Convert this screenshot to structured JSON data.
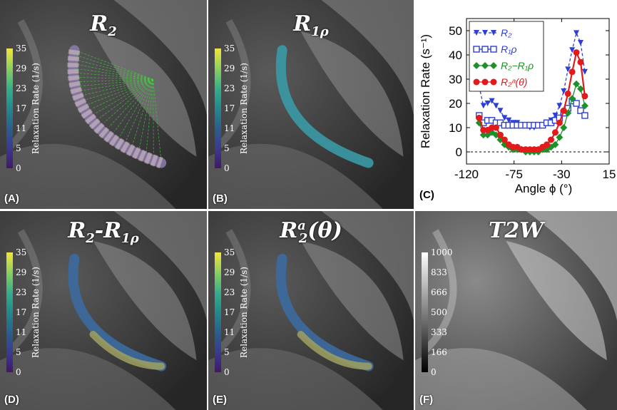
{
  "panels": [
    {
      "id": "A",
      "label": "(A)",
      "title": "R",
      "sub": "2",
      "colorbar": true,
      "overlay": "fan"
    },
    {
      "id": "B",
      "label": "(B)",
      "title": "R",
      "sub": "1ρ",
      "colorbar": true,
      "overlay": "cyan"
    },
    {
      "id": "D",
      "label": "(D)",
      "title": "R",
      "sub": "2",
      "title2": "-R",
      "sub2": "1ρ",
      "colorbar": true,
      "overlay": "mixed"
    },
    {
      "id": "E",
      "label": "(E)",
      "title": "R",
      "sub": "2",
      "sup": "a",
      "tail": "(θ)",
      "colorbar": true,
      "overlay": "mixed"
    },
    {
      "id": "F",
      "label": "(F)",
      "title": "T2W",
      "colorbar": false,
      "overlay": "none"
    }
  ],
  "colorbar_rate": {
    "title": "Relaxation Rate (1/s)",
    "ticks": [
      "35",
      "29",
      "23",
      "17",
      "11",
      "5",
      "0"
    ],
    "colors": [
      "#f2e63a",
      "#8bd15a",
      "#35b08a",
      "#23898d",
      "#2a5f8e",
      "#3a3b8e",
      "#41186a"
    ]
  },
  "colorbar_t2w": {
    "ticks": [
      "1000",
      "833",
      "666",
      "500",
      "333",
      "166",
      "0"
    ]
  },
  "chart_data": {
    "type": "line",
    "panel_label": "(C)",
    "xlabel": "Angle ϕ (°)",
    "ylabel": "Relaxation Rate (s⁻¹)",
    "xlim": [
      -120,
      15
    ],
    "ylim": [
      -5,
      55
    ],
    "xticks": [
      -120,
      -75,
      -30,
      15
    ],
    "yticks": [
      0,
      10,
      20,
      30,
      40,
      50
    ],
    "legend_position": "top-left",
    "series": [
      {
        "name": "R₂",
        "color": "#2d3fd6",
        "marker": "triangle-down",
        "dash": "4,3",
        "x": [
          -108,
          -104,
          -100,
          -96,
          -92,
          -88,
          -84,
          -80,
          -76,
          -72,
          -68,
          -64,
          -60,
          -56,
          -52,
          -48,
          -44,
          -40,
          -36,
          -32,
          -28,
          -24,
          -20,
          -16,
          -12,
          -8
        ],
        "y": [
          27,
          19,
          20,
          21,
          19,
          17,
          14,
          13,
          12,
          12,
          11,
          11,
          10,
          10,
          11,
          11,
          12,
          13,
          15,
          19,
          25,
          34,
          42,
          49,
          45,
          33
        ]
      },
      {
        "name": "R₁ρ",
        "color": "#2d3fd6",
        "marker": "square",
        "dash": "",
        "x": [
          -108,
          -104,
          -100,
          -96,
          -92,
          -88,
          -84,
          -80,
          -76,
          -72,
          -68,
          -64,
          -60,
          -56,
          -52,
          -48,
          -44,
          -40,
          -36,
          -32,
          -28,
          -24,
          -20,
          -16,
          -12,
          -8
        ],
        "y": [
          15,
          12,
          13,
          13,
          12,
          12,
          11,
          11,
          11,
          11,
          11,
          11,
          11,
          11,
          11,
          11,
          12,
          12,
          13,
          14,
          16,
          18,
          21,
          20,
          17,
          15
        ]
      },
      {
        "name": "R₂−R₁ρ",
        "color": "#1f8f2a",
        "marker": "diamond",
        "dash": "",
        "x": [
          -108,
          -104,
          -100,
          -96,
          -92,
          -88,
          -84,
          -80,
          -76,
          -72,
          -68,
          -64,
          -60,
          -56,
          -52,
          -48,
          -44,
          -40,
          -36,
          -32,
          -28,
          -24,
          -20,
          -16,
          -12,
          -8
        ],
        "y": [
          12,
          7,
          7,
          8,
          7,
          5,
          3,
          2,
          1,
          1,
          1,
          0,
          0,
          0,
          0,
          1,
          1,
          2,
          3,
          6,
          10,
          16,
          22,
          28,
          26,
          19
        ]
      },
      {
        "name": "R₂ᵃ(θ)",
        "color": "#e11b1b",
        "marker": "circle",
        "dash": "",
        "x": [
          -108,
          -104,
          -100,
          -96,
          -92,
          -88,
          -84,
          -80,
          -76,
          -72,
          -68,
          -64,
          -60,
          -56,
          -52,
          -48,
          -44,
          -40,
          -36,
          -32,
          -28,
          -24,
          -20,
          -16,
          -12,
          -8
        ],
        "y": [
          14,
          9,
          9,
          10,
          10,
          7,
          5,
          3,
          2,
          2,
          1,
          1,
          1,
          1,
          1,
          2,
          3,
          5,
          8,
          12,
          17,
          24,
          33,
          41,
          37,
          23
        ]
      }
    ]
  }
}
